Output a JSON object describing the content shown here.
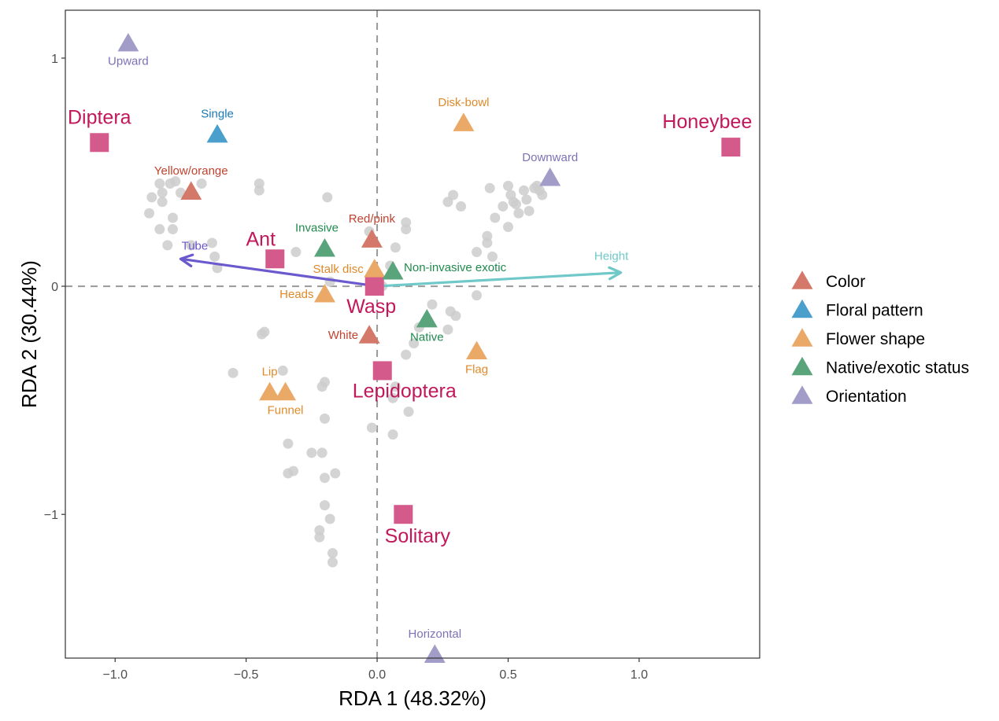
{
  "chart_data": {
    "type": "scatter",
    "title": "",
    "xlabel": "RDA 1 (48.32%)",
    "ylabel": "RDA 2 (30.44%)",
    "xlim": [
      -1.19,
      1.46
    ],
    "ylim": [
      -1.63,
      1.21
    ],
    "x_ticks": [
      -1.0,
      -0.5,
      0.0,
      0.5,
      1.0
    ],
    "x_tick_labels": [
      "−1.0",
      "−0.5",
      "0.0",
      "0.5",
      "1.0"
    ],
    "y_ticks": [
      1,
      0,
      -1
    ],
    "y_tick_labels": [
      "1",
      "0",
      "−1"
    ],
    "grid": false,
    "reference_lines": {
      "x": 0,
      "y": 0,
      "style": "dashed",
      "color": "#999999"
    },
    "legend": {
      "position": "right",
      "entries": [
        {
          "label": "Color",
          "color": "#d4796a"
        },
        {
          "label": "Floral pattern",
          "color": "#4a9fcc"
        },
        {
          "label": "Flower shape",
          "color": "#eba968"
        },
        {
          "label": "Native/exotic status",
          "color": "#5aa47c"
        },
        {
          "label": "Orientation",
          "color": "#a19dc8"
        }
      ]
    },
    "label_colors": {
      "Color": "#c0432f",
      "Floral pattern": "#1a7ab5",
      "Flower shape": "#e08a2a",
      "Native/exotic status": "#1f8a4c",
      "Orientation": "#7b72b8"
    },
    "trait_points": [
      {
        "label": "Upward",
        "group": "Orientation",
        "x": -0.95,
        "y": 1.07,
        "label_pos": "below"
      },
      {
        "label": "Single",
        "group": "Floral pattern",
        "x": -0.61,
        "y": 0.67,
        "label_pos": "above"
      },
      {
        "label": "Yellow/orange",
        "group": "Color",
        "x": -0.71,
        "y": 0.42,
        "label_pos": "above"
      },
      {
        "label": "Disk-bowl",
        "group": "Flower shape",
        "x": 0.33,
        "y": 0.72,
        "label_pos": "above"
      },
      {
        "label": "Downward",
        "group": "Orientation",
        "x": 0.66,
        "y": 0.48,
        "label_pos": "above"
      },
      {
        "label": "Invasive",
        "group": "Native/exotic status",
        "x": -0.2,
        "y": 0.17,
        "label_pos": "above-left"
      },
      {
        "label": "Red/pink",
        "group": "Color",
        "x": -0.02,
        "y": 0.21,
        "label_pos": "above"
      },
      {
        "label": "Stalk disc",
        "group": "Flower shape",
        "x": -0.01,
        "y": 0.08,
        "label_pos": "left"
      },
      {
        "label": "Non-invasive exotic",
        "group": "Native/exotic status",
        "x": 0.06,
        "y": 0.07,
        "label_pos": "right"
      },
      {
        "label": "Heads",
        "group": "Flower shape",
        "x": -0.2,
        "y": -0.03,
        "label_pos": "left"
      },
      {
        "label": "White",
        "group": "Color",
        "x": -0.03,
        "y": -0.21,
        "label_pos": "left"
      },
      {
        "label": "Native",
        "group": "Native/exotic status",
        "x": 0.19,
        "y": -0.14,
        "label_pos": "below"
      },
      {
        "label": "Flag",
        "group": "Flower shape",
        "x": 0.38,
        "y": -0.28,
        "label_pos": "below"
      },
      {
        "label": "Lip",
        "group": "Flower shape",
        "x": -0.41,
        "y": -0.46,
        "label_pos": "above"
      },
      {
        "label": "Funnel",
        "group": "Flower shape",
        "x": -0.35,
        "y": -0.46,
        "label_pos": "below"
      },
      {
        "label": "Horizontal",
        "group": "Orientation",
        "x": 0.22,
        "y": -1.61,
        "label_pos": "above"
      }
    ],
    "pollinator_groups": {
      "color": "#d45a8c",
      "label_color": "#c2185b",
      "points": [
        {
          "label": "Diptera",
          "x": -1.06,
          "y": 0.63,
          "label_pos": "above"
        },
        {
          "label": "Honeybee",
          "x": 1.35,
          "y": 0.61,
          "label_pos": "above"
        },
        {
          "label": "Ant",
          "x": -0.39,
          "y": 0.12,
          "label_pos": "above-left"
        },
        {
          "label": "Wasp",
          "x": -0.01,
          "y": 0.0,
          "label_pos": "below"
        },
        {
          "label": "Lepidoptera",
          "x": 0.02,
          "y": -0.37,
          "label_pos": "below"
        },
        {
          "label": "Solitary",
          "x": 0.1,
          "y": -1.0,
          "label_pos": "below"
        }
      ]
    },
    "vectors": [
      {
        "label": "Tube",
        "x": -0.75,
        "y": 0.12,
        "color": "#6a5acd"
      },
      {
        "label": "Height",
        "x": 0.93,
        "y": 0.06,
        "color": "#70c8c8"
      }
    ],
    "site_points_color": "#cccccc",
    "site_points": [
      [
        -0.83,
        0.45
      ],
      [
        -0.79,
        0.45
      ],
      [
        -0.77,
        0.46
      ],
      [
        -0.67,
        0.45
      ],
      [
        -0.86,
        0.39
      ],
      [
        -0.82,
        0.41
      ],
      [
        -0.75,
        0.41
      ],
      [
        -0.82,
        0.37
      ],
      [
        -0.87,
        0.32
      ],
      [
        -0.78,
        0.3
      ],
      [
        -0.83,
        0.25
      ],
      [
        -0.78,
        0.25
      ],
      [
        -0.8,
        0.18
      ],
      [
        -0.71,
        0.18
      ],
      [
        -0.63,
        0.19
      ],
      [
        -0.62,
        0.13
      ],
      [
        -0.61,
        0.08
      ],
      [
        -0.45,
        0.45
      ],
      [
        -0.45,
        0.42
      ],
      [
        -0.19,
        0.39
      ],
      [
        -0.31,
        0.15
      ],
      [
        -0.03,
        0.24
      ],
      [
        0.11,
        0.25
      ],
      [
        0.11,
        0.28
      ],
      [
        0.07,
        0.17
      ],
      [
        -0.18,
        0.02
      ],
      [
        0.02,
        0.0
      ],
      [
        0.05,
        0.09
      ],
      [
        0.29,
        0.4
      ],
      [
        0.27,
        0.37
      ],
      [
        0.32,
        0.35
      ],
      [
        0.43,
        0.43
      ],
      [
        0.5,
        0.44
      ],
      [
        0.51,
        0.4
      ],
      [
        0.52,
        0.37
      ],
      [
        0.56,
        0.42
      ],
      [
        0.57,
        0.38
      ],
      [
        0.6,
        0.43
      ],
      [
        0.62,
        0.42
      ],
      [
        0.63,
        0.4
      ],
      [
        0.61,
        0.44
      ],
      [
        0.53,
        0.36
      ],
      [
        0.54,
        0.32
      ],
      [
        0.45,
        0.3
      ],
      [
        0.5,
        0.26
      ],
      [
        0.42,
        0.22
      ],
      [
        0.42,
        0.19
      ],
      [
        0.44,
        0.13
      ],
      [
        0.38,
        0.15
      ],
      [
        0.48,
        0.35
      ],
      [
        0.58,
        0.33
      ],
      [
        0.38,
        -0.04
      ],
      [
        0.21,
        -0.08
      ],
      [
        0.28,
        -0.11
      ],
      [
        0.3,
        -0.13
      ],
      [
        0.16,
        -0.18
      ],
      [
        0.27,
        -0.19
      ],
      [
        0.14,
        -0.25
      ],
      [
        0.11,
        -0.3
      ],
      [
        -0.44,
        -0.21
      ],
      [
        -0.43,
        -0.2
      ],
      [
        -0.55,
        -0.38
      ],
      [
        -0.36,
        -0.37
      ],
      [
        -0.2,
        -0.42
      ],
      [
        -0.21,
        -0.44
      ],
      [
        0.07,
        -0.44
      ],
      [
        0.06,
        -0.49
      ],
      [
        -0.2,
        -0.58
      ],
      [
        0.12,
        -0.55
      ],
      [
        -0.02,
        -0.62
      ],
      [
        0.06,
        -0.65
      ],
      [
        -0.34,
        -0.69
      ],
      [
        -0.25,
        -0.73
      ],
      [
        -0.21,
        -0.73
      ],
      [
        -0.34,
        -0.82
      ],
      [
        -0.32,
        -0.81
      ],
      [
        -0.2,
        -0.84
      ],
      [
        -0.16,
        -0.82
      ],
      [
        -0.2,
        -0.96
      ],
      [
        -0.18,
        -1.02
      ],
      [
        -0.22,
        -1.07
      ],
      [
        -0.22,
        -1.1
      ],
      [
        -0.17,
        -1.17
      ],
      [
        -0.17,
        -1.21
      ]
    ]
  }
}
